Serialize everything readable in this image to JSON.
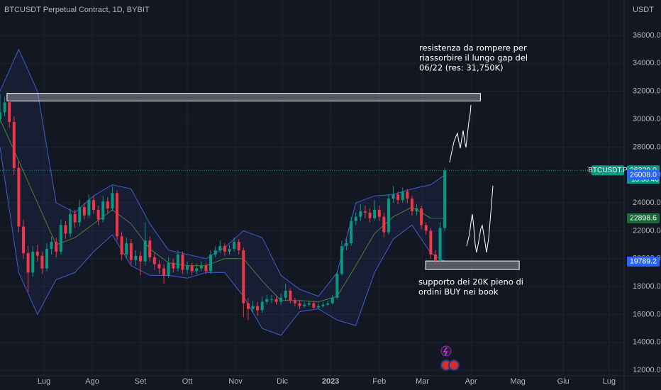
{
  "chart_data": {
    "type": "candlestick",
    "title": "BTCUSDT Perpetual Contract, 1D, BYBIT",
    "currency": "USDT",
    "up_color": "#089981",
    "down_color": "#f23645",
    "band_color": "#3f5fd0",
    "middle_color": "#4f7f3a",
    "grid": true,
    "xlim": [
      0,
      133.3
    ],
    "ylim": [
      11600,
      38540
    ],
    "xticks": [
      {
        "value": 9.4,
        "label": "Lug"
      },
      {
        "value": 19.7,
        "label": "Ago"
      },
      {
        "value": 30,
        "label": "Set"
      },
      {
        "value": 40,
        "label": "Ott"
      },
      {
        "value": 50.3,
        "label": "Nov"
      },
      {
        "value": 60.3,
        "label": "Dic"
      },
      {
        "value": 70.6,
        "label": "2023"
      },
      {
        "value": 81,
        "label": "Feb"
      },
      {
        "value": 90.2,
        "label": "Mar"
      },
      {
        "value": 100.6,
        "label": "Apr"
      },
      {
        "value": 110.6,
        "label": "Mag"
      },
      {
        "value": 120.3,
        "label": "Giu"
      },
      {
        "value": 130.1,
        "label": "Lug"
      }
    ],
    "yticks": [
      {
        "value": 12000,
        "label": "12000.0"
      },
      {
        "value": 14000,
        "label": "14000.0"
      },
      {
        "value": 16000,
        "label": "16000.0"
      },
      {
        "value": 18000,
        "label": "18000.0"
      },
      {
        "value": 20000,
        "label": "20000.0"
      },
      {
        "value": 22000,
        "label": "22000.0"
      },
      {
        "value": 24000,
        "label": "24000.0"
      },
      {
        "value": 26000,
        "label": "26000.0"
      },
      {
        "value": 28000,
        "label": "28000.0"
      },
      {
        "value": 30000,
        "label": "30000.0"
      },
      {
        "value": 32000,
        "label": "32000.0"
      },
      {
        "value": 34000,
        "label": "34000.0"
      },
      {
        "value": 36000,
        "label": "36000.0"
      }
    ],
    "candles": [
      [
        30000,
        31800,
        29700,
        30500
      ],
      [
        30500,
        31600,
        30200,
        31200
      ],
      [
        31200,
        31400,
        29400,
        29800
      ],
      [
        29800,
        30200,
        26000,
        26500
      ],
      [
        26500,
        27000,
        21900,
        22300
      ],
      [
        22300,
        22800,
        20000,
        20400
      ],
      [
        20400,
        20900,
        17600,
        19000
      ],
      [
        19000,
        20900,
        18700,
        20500
      ],
      [
        20500,
        21000,
        19800,
        20200
      ],
      [
        20200,
        20500,
        18900,
        19300
      ],
      [
        19300,
        21100,
        19100,
        20700
      ],
      [
        20700,
        21600,
        20300,
        21200
      ],
      [
        21200,
        21500,
        20100,
        20500
      ],
      [
        20500,
        22800,
        20300,
        22400
      ],
      [
        22400,
        22700,
        21400,
        21800
      ],
      [
        21800,
        23600,
        21500,
        23200
      ],
      [
        23200,
        23500,
        22200,
        22600
      ],
      [
        22600,
        24200,
        22300,
        23700
      ],
      [
        23700,
        24000,
        22800,
        23100
      ],
      [
        23100,
        24600,
        22900,
        24200
      ],
      [
        24200,
        24500,
        23200,
        23500
      ],
      [
        23500,
        23800,
        22400,
        22800
      ],
      [
        22800,
        24500,
        22600,
        24100
      ],
      [
        24100,
        24400,
        23300,
        23600
      ],
      [
        23600,
        25200,
        23400,
        24700
      ],
      [
        24700,
        24900,
        21300,
        21600
      ],
      [
        21600,
        21900,
        19900,
        20300
      ],
      [
        20300,
        21500,
        20000,
        21100
      ],
      [
        21100,
        21400,
        19600,
        19900
      ],
      [
        19900,
        20600,
        19500,
        20200
      ],
      [
        20200,
        20500,
        18800,
        19800
      ],
      [
        19800,
        22600,
        19500,
        21300
      ],
      [
        21300,
        21600,
        19800,
        20100
      ],
      [
        20100,
        20400,
        19200,
        19600
      ],
      [
        19600,
        19900,
        18900,
        19300
      ],
      [
        19300,
        19600,
        18200,
        18800
      ],
      [
        18800,
        20100,
        18600,
        19700
      ],
      [
        19700,
        20000,
        19000,
        19300
      ],
      [
        19300,
        20600,
        19100,
        20300
      ],
      [
        20300,
        20500,
        18900,
        19200
      ],
      [
        19200,
        19800,
        18900,
        19500
      ],
      [
        19500,
        19700,
        18800,
        19100
      ],
      [
        19100,
        19600,
        18900,
        19300
      ],
      [
        19300,
        19800,
        19100,
        19500
      ],
      [
        19500,
        19700,
        18900,
        19100
      ],
      [
        19100,
        20600,
        18900,
        20300
      ],
      [
        20300,
        20900,
        20100,
        20600
      ],
      [
        20600,
        21300,
        20400,
        20900
      ],
      [
        20900,
        21100,
        20200,
        20500
      ],
      [
        20500,
        21000,
        20300,
        20700
      ],
      [
        20700,
        21500,
        20500,
        21200
      ],
      [
        21200,
        21400,
        20300,
        20600
      ],
      [
        20600,
        20800,
        15800,
        16800
      ],
      [
        16800,
        17200,
        15600,
        16400
      ],
      [
        16400,
        17000,
        16100,
        16600
      ],
      [
        16600,
        16900,
        15900,
        16300
      ],
      [
        16300,
        17300,
        16100,
        16900
      ],
      [
        16900,
        17400,
        16700,
        17100
      ],
      [
        17100,
        17400,
        16800,
        17100
      ],
      [
        17100,
        17300,
        16700,
        16900
      ],
      [
        16900,
        17500,
        16700,
        17200
      ],
      [
        17200,
        18200,
        17000,
        17700
      ],
      [
        17700,
        17900,
        16800,
        17000
      ],
      [
        17000,
        17200,
        16600,
        16800
      ],
      [
        16800,
        17000,
        16400,
        16600
      ],
      [
        16600,
        16900,
        16500,
        16700
      ],
      [
        16700,
        17000,
        16600,
        16800
      ],
      [
        16800,
        16900,
        16400,
        16500
      ],
      [
        16500,
        16800,
        16400,
        16600
      ],
      [
        16600,
        16900,
        16500,
        16700
      ],
      [
        16700,
        17000,
        16600,
        16800
      ],
      [
        16800,
        17400,
        16700,
        17200
      ],
      [
        17200,
        19100,
        17100,
        18900
      ],
      [
        18900,
        21300,
        18800,
        20900
      ],
      [
        20900,
        21500,
        20600,
        21100
      ],
      [
        21100,
        23000,
        20900,
        22700
      ],
      [
        22700,
        23300,
        22400,
        23000
      ],
      [
        23000,
        23900,
        22700,
        23400
      ],
      [
        23400,
        23800,
        22900,
        23300
      ],
      [
        23300,
        23600,
        22600,
        22900
      ],
      [
        22900,
        24200,
        22700,
        23500
      ],
      [
        23500,
        23800,
        22700,
        23000
      ],
      [
        23000,
        23300,
        21500,
        21900
      ],
      [
        21900,
        24600,
        21700,
        24300
      ],
      [
        24300,
        25200,
        24000,
        24600
      ],
      [
        24600,
        24800,
        23900,
        24200
      ],
      [
        24200,
        25100,
        24000,
        24800
      ],
      [
        24800,
        25000,
        24000,
        24300
      ],
      [
        24300,
        24500,
        23100,
        23400
      ],
      [
        23400,
        23900,
        23100,
        23600
      ],
      [
        23600,
        23800,
        22100,
        22400
      ],
      [
        22400,
        22600,
        21700,
        22000
      ],
      [
        22000,
        22200,
        20000,
        20300
      ],
      [
        20300,
        20600,
        19600,
        19900
      ],
      [
        19900,
        22600,
        19800,
        22200
      ],
      [
        22200,
        26500,
        22000,
        26329
      ]
    ],
    "bands": {
      "x": [
        0,
        4,
        8,
        12,
        16,
        20,
        24,
        28,
        32,
        36,
        40,
        44,
        48,
        52,
        56,
        60,
        64,
        68,
        72,
        76,
        80,
        84,
        88,
        92,
        95
      ],
      "upper": [
        32000,
        35000,
        32000,
        24000,
        23300,
        24500,
        25300,
        25000,
        22500,
        20600,
        20300,
        20000,
        20800,
        22000,
        21500,
        18800,
        17800,
        17300,
        19000,
        24000,
        24500,
        24600,
        25000,
        25300,
        26008
      ],
      "middle": [
        30000,
        27000,
        24000,
        21000,
        21500,
        22500,
        23500,
        22500,
        20700,
        19700,
        19500,
        19500,
        20000,
        20000,
        18400,
        17000,
        17000,
        16900,
        17300,
        19500,
        21800,
        23000,
        23700,
        22900,
        22898.6
      ],
      "lower": [
        28000,
        19000,
        16000,
        18500,
        19000,
        20500,
        21700,
        19500,
        18800,
        18800,
        18600,
        19000,
        19000,
        17300,
        15000,
        14500,
        16200,
        16400,
        15600,
        15200,
        19000,
        21400,
        22400,
        20400,
        19789.2
      ]
    },
    "zones": [
      {
        "from": 31300,
        "to": 31850,
        "start": 1.5,
        "end": 102.6
      },
      {
        "from": 19220,
        "to": 19830,
        "start": 90.9,
        "end": 110.9
      }
    ],
    "symbol_label": "BTCUSDT.P",
    "countdown": "13:56:46",
    "price_labels": [
      {
        "value": 26329,
        "label": "26329.0",
        "color": "#089981"
      },
      {
        "value": 26008,
        "label": "26008.0",
        "color": "#2962ff"
      },
      {
        "value": 22898.6,
        "label": "22898.6",
        "color": "#1b6b3a"
      },
      {
        "value": 19789.2,
        "label": "19789.2",
        "color": "#2962ff"
      }
    ],
    "annotations": [
      {
        "lines": [
          "resistenza da rompere per",
          "riassorbire il lungo gap del",
          "06/22 (res: 31,750K)"
        ]
      },
      {
        "lines": [
          "supporto dei 20K pieno di",
          "ordini BUY nei book"
        ]
      }
    ]
  }
}
